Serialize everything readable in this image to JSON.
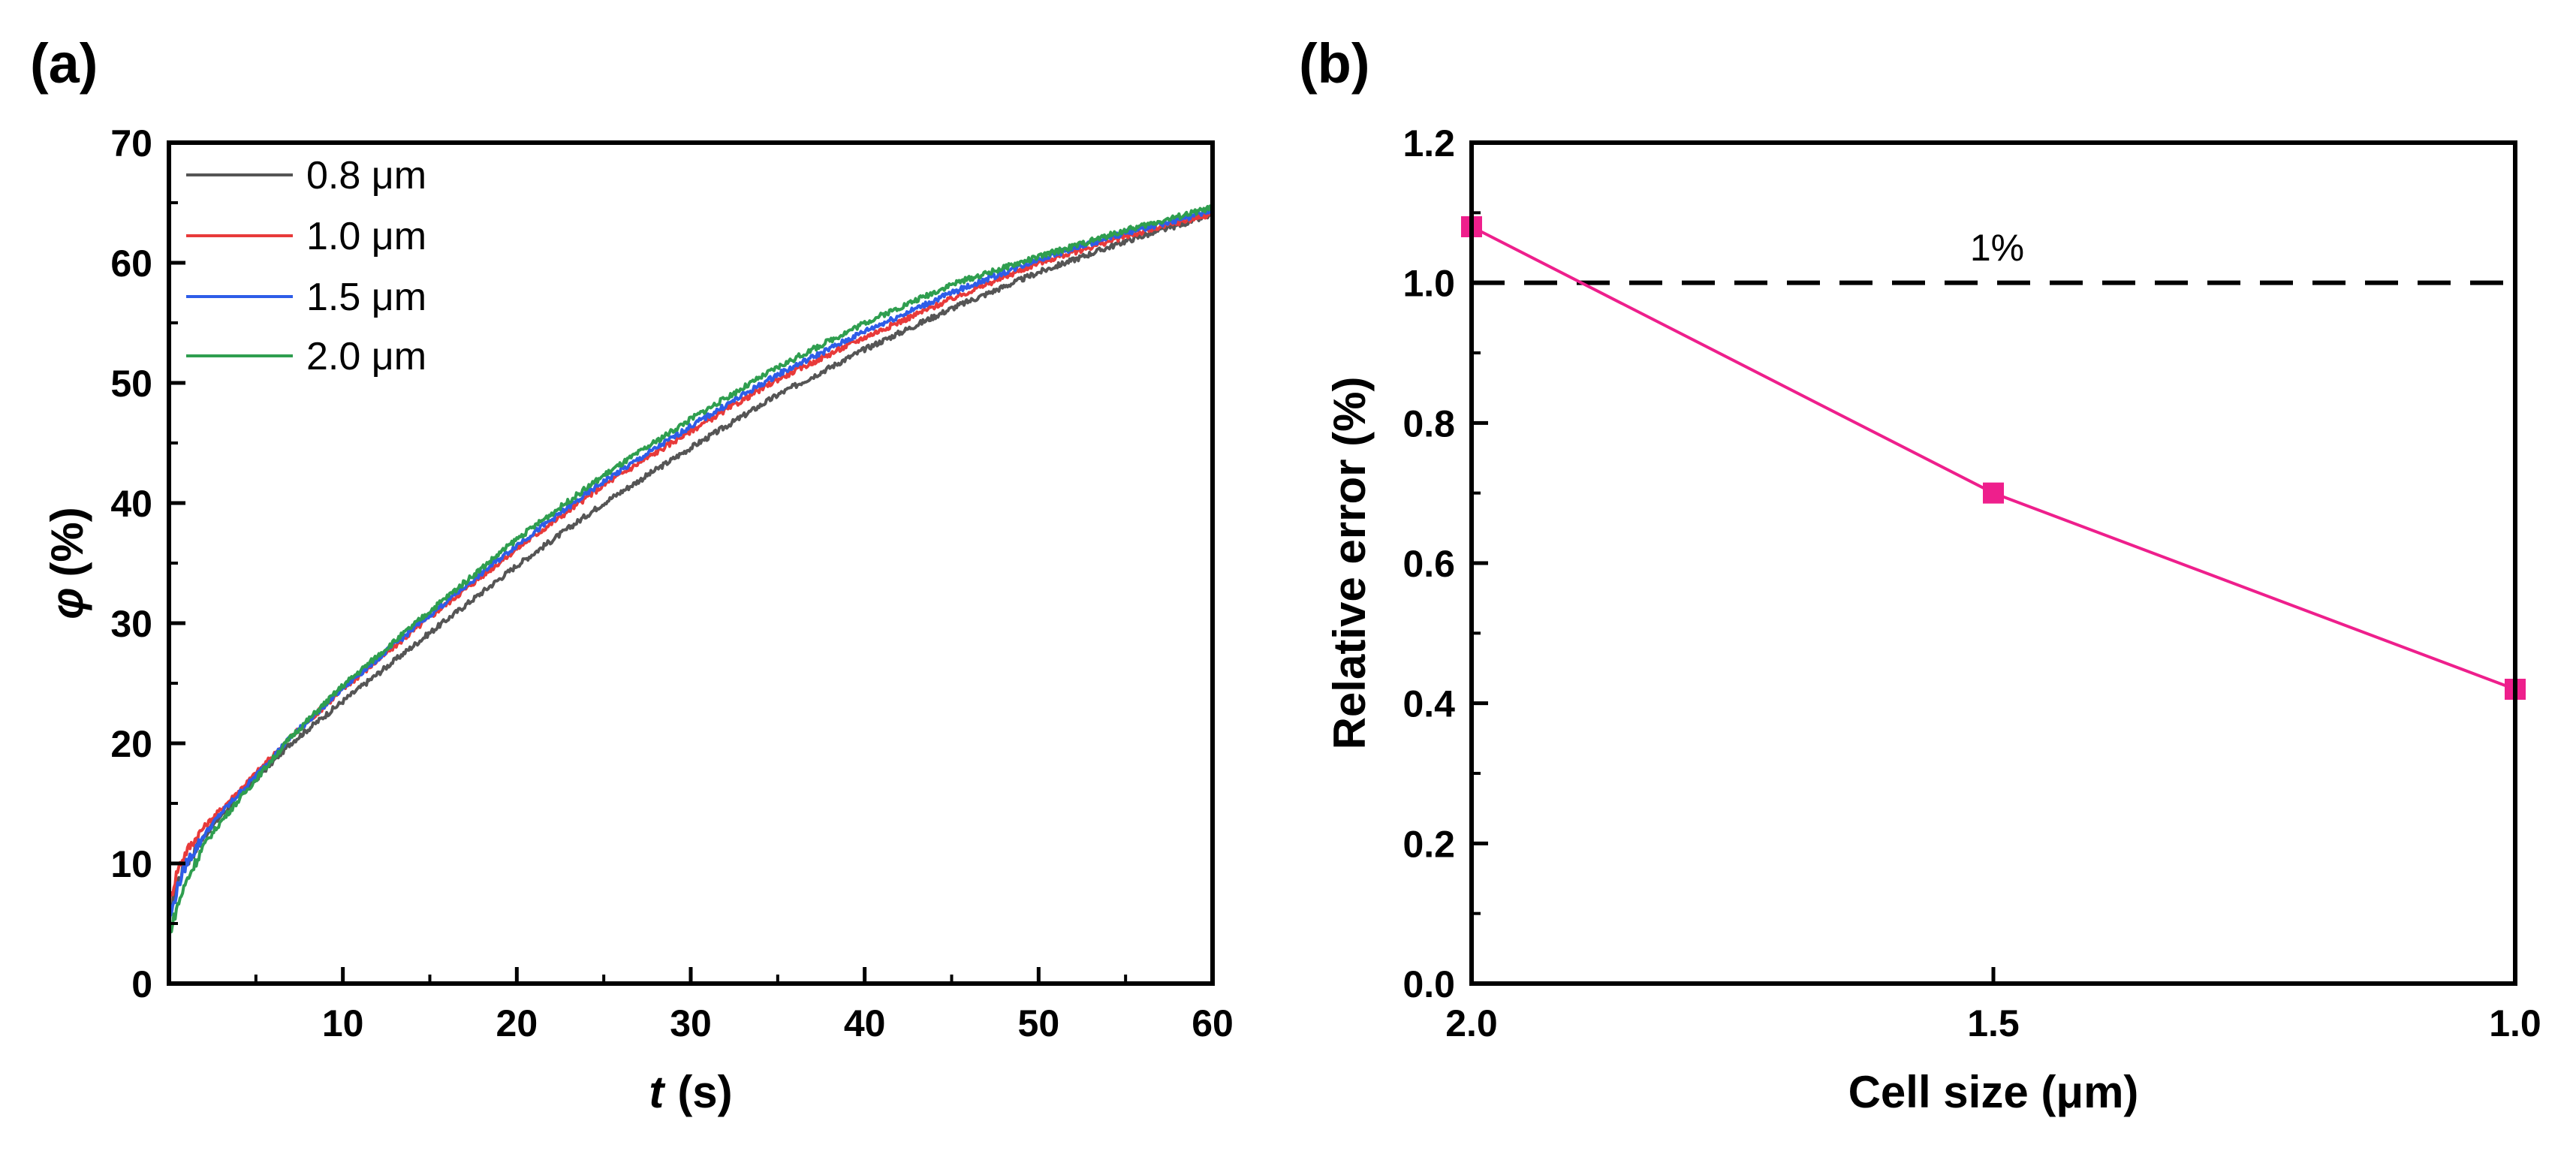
{
  "chart_data": [
    {
      "panel_label": "(a)",
      "type": "line",
      "xlabel_var": "t",
      "xlabel_unit": "(s)",
      "ylabel_var": "φ",
      "ylabel_unit": "(%)",
      "xlim": [
        0,
        60
      ],
      "ylim": [
        0,
        70
      ],
      "x_ticks": [
        10,
        20,
        30,
        40,
        50,
        60
      ],
      "y_ticks": [
        0,
        10,
        20,
        30,
        40,
        50,
        60,
        70
      ],
      "legend": "top-left",
      "grid": false,
      "series": [
        {
          "name": "0.8 μm",
          "color": "#555555",
          "x": [
            0,
            0.5,
            1,
            2,
            3,
            5,
            7,
            10,
            15,
            20,
            25,
            30,
            35,
            40,
            45,
            50,
            55,
            60
          ],
          "y": [
            5.5,
            8.5,
            10,
            12.2,
            14,
            17,
            20,
            23.5,
            29.2,
            34.8,
            40,
            44.6,
            49,
            52.8,
            56.2,
            59.2,
            61.8,
            64
          ]
        },
        {
          "name": "1.0 μm",
          "color": "#e83a3a",
          "x": [
            0,
            0.5,
            1,
            2,
            3,
            5,
            7,
            10,
            15,
            20,
            25,
            30,
            35,
            40,
            45,
            50,
            55,
            60
          ],
          "y": [
            6.5,
            9.5,
            11,
            13,
            14.5,
            17.5,
            20.5,
            24.5,
            30.5,
            36.2,
            41.5,
            46,
            50.3,
            53.8,
            57,
            60,
            62.2,
            64.1
          ]
        },
        {
          "name": "1.5 μm",
          "color": "#2e5de8",
          "x": [
            0,
            0.5,
            1,
            2,
            3,
            5,
            7,
            10,
            15,
            20,
            25,
            30,
            35,
            40,
            45,
            50,
            55,
            60
          ],
          "y": [
            5,
            8,
            10,
            12.3,
            14.2,
            17.3,
            20.5,
            24.6,
            30.7,
            36.5,
            41.8,
            46.4,
            50.7,
            54.3,
            57.5,
            60.3,
            62.5,
            64.3
          ]
        },
        {
          "name": "2.0 μm",
          "color": "#2f9e4f",
          "x": [
            0,
            0.5,
            1,
            2,
            3,
            5,
            7,
            10,
            15,
            20,
            25,
            30,
            35,
            40,
            45,
            50,
            55,
            60
          ],
          "y": [
            4,
            6.5,
            8.5,
            11.5,
            13.5,
            17,
            20.5,
            24.8,
            31,
            37,
            42.3,
            47,
            51.3,
            55,
            58.2,
            60.5,
            62.7,
            64.6
          ]
        }
      ]
    },
    {
      "panel_label": "(b)",
      "type": "line",
      "xlabel": "Cell size (μm)",
      "ylabel": "Relative error (%)",
      "categories": [
        "2.0",
        "1.5",
        "1.0"
      ],
      "x": [
        2.0,
        1.5,
        1.0
      ],
      "xlim": [
        2.0,
        1.0
      ],
      "ylim": [
        0,
        1.2
      ],
      "y_ticks": [
        "0.0",
        "0.2",
        "0.4",
        "0.6",
        "0.8",
        "1.0",
        "1.2"
      ],
      "legend": "none",
      "grid": false,
      "series": [
        {
          "name": "Relative error",
          "color": "#ee1f8c",
          "marker": "square",
          "x": [
            2.0,
            1.5,
            1.0
          ],
          "y": [
            1.08,
            0.7,
            0.42
          ]
        }
      ],
      "reference_line": {
        "y": 1.0,
        "style": "dashed",
        "color": "#000000",
        "label": "1%"
      }
    }
  ]
}
